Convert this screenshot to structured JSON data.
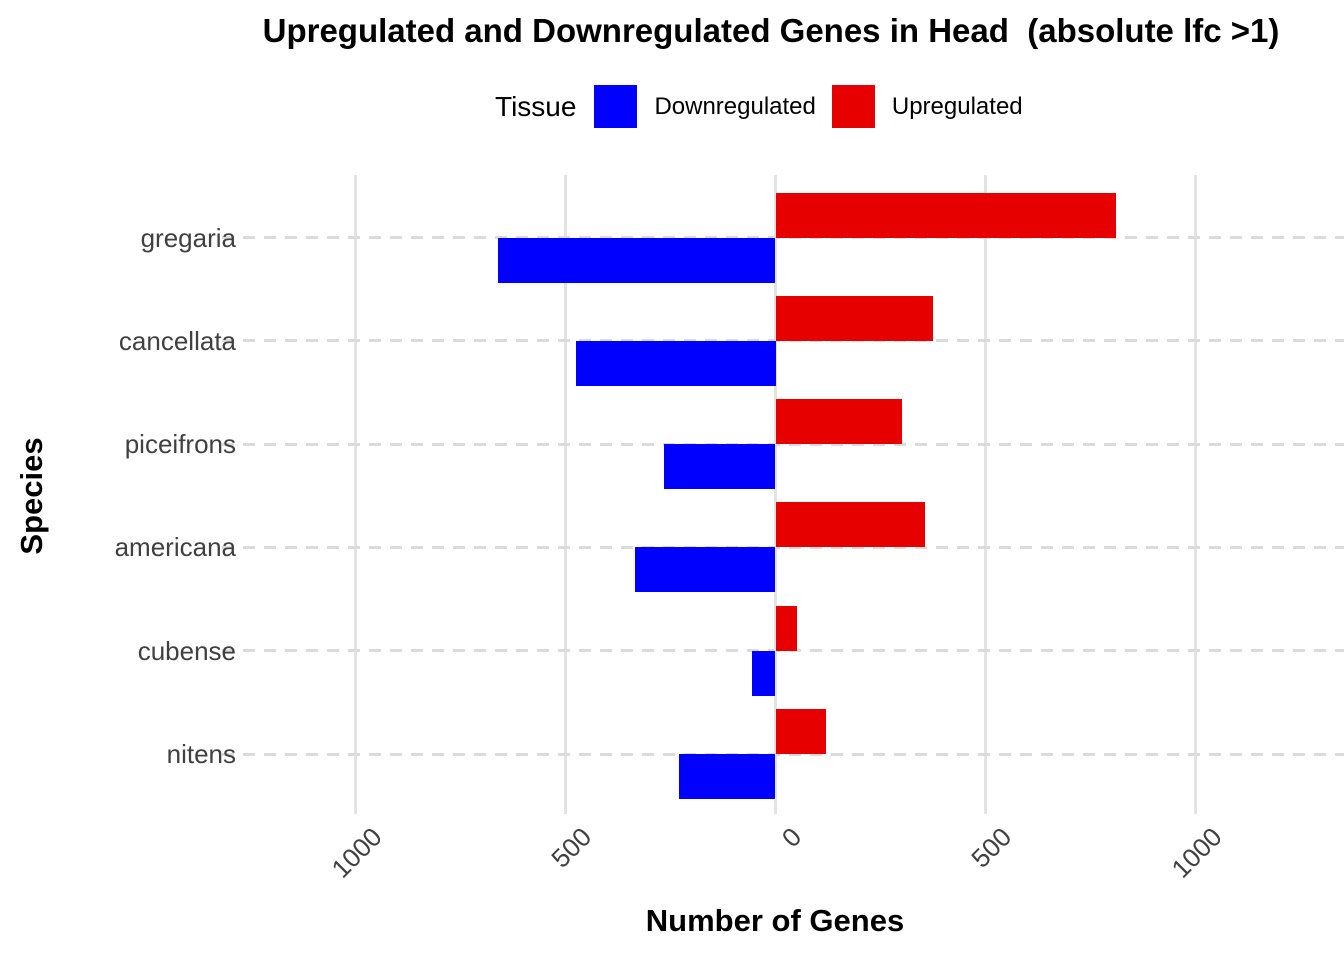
{
  "chart_data": {
    "type": "bar",
    "orientation": "horizontal-diverging",
    "title": "Upregulated and Downregulated Genes in Head  (absolute lfc >1)",
    "legend_title": "Tissue",
    "legend_position": "top",
    "xlabel": "Number of Genes",
    "ylabel": "Species",
    "categories": [
      "gregaria",
      "cancellata",
      "piceifrons",
      "americana",
      "cubense",
      "nitens"
    ],
    "series": [
      {
        "name": "Downregulated",
        "color": "#0000FF",
        "direction": "left",
        "values": [
          660,
          475,
          265,
          335,
          55,
          230
        ]
      },
      {
        "name": "Upregulated",
        "color": "#E60000",
        "direction": "right",
        "values": [
          810,
          375,
          300,
          355,
          50,
          120
        ]
      }
    ],
    "x_ticks": [
      {
        "value": -1000,
        "label": "1000"
      },
      {
        "value": -500,
        "label": "500"
      },
      {
        "value": 0,
        "label": "0"
      },
      {
        "value": 500,
        "label": "500"
      },
      {
        "value": 1000,
        "label": "1000"
      }
    ],
    "xlim": [
      -1250,
      1350
    ],
    "grid": {
      "vertical": "solid",
      "horizontal": "dashed"
    },
    "colors": {
      "downregulated": "#0000FF",
      "upregulated": "#E60000",
      "gridline": "#E3E3E3",
      "dashed_gridline": "#DBDBDB",
      "axis_text": "#404040"
    }
  }
}
